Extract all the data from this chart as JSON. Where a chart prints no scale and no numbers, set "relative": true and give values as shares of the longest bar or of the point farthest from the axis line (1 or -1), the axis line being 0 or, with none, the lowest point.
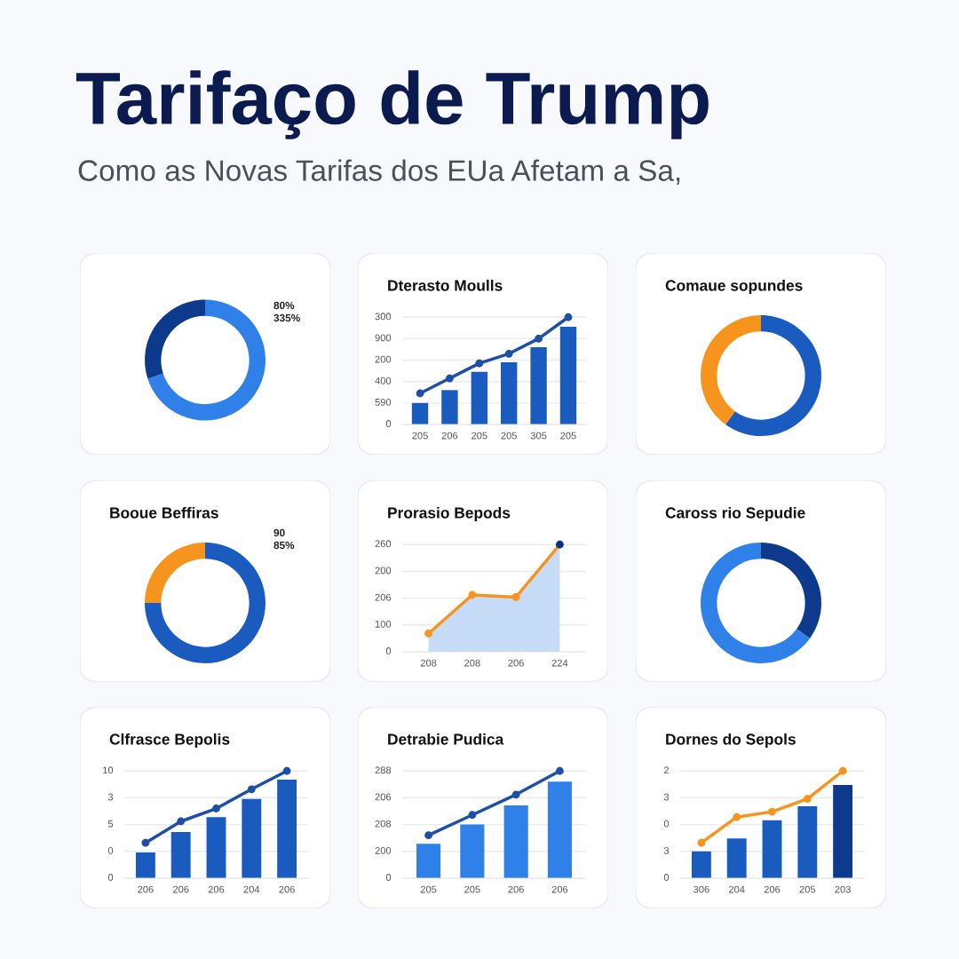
{
  "chart_data": [
    {
      "type": "other",
      "title": "Tarifaço de Trump",
      "subtitle": "Como as Novas Tarifas dos EUa Afetam a Sa,"
    },
    {
      "type": "donut",
      "categories": [
        null,
        null
      ],
      "values": [
        70,
        30
      ],
      "colors": [
        "#2f80e8",
        "#0d3a8c"
      ],
      "annotations": [
        "80%",
        "335%"
      ]
    },
    {
      "type": "bar",
      "title": "Dterasto Moulls",
      "categories": [
        "205",
        "206",
        "205",
        "205",
        "305",
        "205"
      ],
      "relative": true,
      "series": [
        {
          "type": "bar",
          "color": "#1a5bbf",
          "values": [
            0.2,
            0.32,
            0.49,
            0.58,
            0.72,
            0.91
          ]
        },
        {
          "type": "line",
          "color": "#1d4fa8",
          "values": [
            0.29,
            0.43,
            0.57,
            0.66,
            0.8,
            1.0
          ]
        }
      ],
      "annotations": [
        "0",
        "590",
        "400",
        "200",
        "900",
        "300"
      ],
      "grid": "y",
      "marker": "circle"
    },
    {
      "type": "donut",
      "title": "Comaue sopundes",
      "categories": [
        null,
        null
      ],
      "values": [
        60,
        40
      ],
      "colors": [
        "#1a5bbf",
        "#f7941d"
      ]
    },
    {
      "type": "donut",
      "title": "Booue Beffiras",
      "categories": [
        null,
        null
      ],
      "values": [
        75,
        25
      ],
      "colors": [
        "#1a5bbf",
        "#f7941d"
      ],
      "annotations": [
        "90",
        "85%"
      ]
    },
    {
      "type": "area",
      "title": "Prorasio Bepods",
      "categories": [
        "208",
        "208",
        "206",
        "224"
      ],
      "relative": true,
      "series": [
        {
          "type": "area",
          "color": "#c6dcf6",
          "marker": "none",
          "values": [
            0.17,
            0.53,
            0.51,
            1.0
          ]
        },
        {
          "type": "line",
          "color": "#f7941d",
          "colors": [
            "#f7941d",
            "#f7941d",
            "#f7941d",
            "#0d2f80"
          ],
          "values": [
            0.17,
            0.53,
            0.51,
            1.0
          ]
        }
      ],
      "annotations": [
        "0",
        "100",
        "206",
        "200",
        "260"
      ],
      "grid": "y",
      "marker": "circle"
    },
    {
      "type": "donut",
      "title": "Caross rio Sepudie",
      "categories": [
        null,
        null
      ],
      "values": [
        35,
        65
      ],
      "colors": [
        "#0d3a8c",
        "#2f80e8"
      ]
    },
    {
      "type": "bar",
      "title": "Clfrasce Bepolis",
      "categories": [
        "206",
        "206",
        "206",
        "204",
        "206"
      ],
      "relative": true,
      "series": [
        {
          "type": "bar",
          "color": "#1a5bbf",
          "values": [
            0.24,
            0.43,
            0.57,
            0.74,
            0.92
          ]
        },
        {
          "type": "line",
          "color": "#1d4fa8",
          "values": [
            0.33,
            0.53,
            0.65,
            0.83,
            1.0
          ]
        }
      ],
      "annotations": [
        "0",
        "0",
        "5",
        "3",
        "10"
      ],
      "grid": "y",
      "marker": "circle"
    },
    {
      "type": "bar",
      "title": "Detrabie Pudica",
      "categories": [
        "205",
        "205",
        "206",
        "206"
      ],
      "relative": true,
      "series": [
        {
          "type": "bar",
          "color": "#2f80e8",
          "values": [
            0.32,
            0.5,
            0.68,
            0.9
          ]
        },
        {
          "type": "line",
          "color": "#1d4fa8",
          "values": [
            0.4,
            0.59,
            0.78,
            1.0
          ]
        }
      ],
      "annotations": [
        "0",
        "200",
        "208",
        "206",
        "288"
      ],
      "grid": "y",
      "marker": "circle"
    },
    {
      "type": "bar",
      "title": "Dornes do Sepols",
      "categories": [
        "306",
        "204",
        "206",
        "205",
        "203"
      ],
      "relative": true,
      "series": [
        {
          "type": "bar",
          "colors": [
            "#1a5bbf",
            "#1a5bbf",
            "#1a5bbf",
            "#1a5bbf",
            "#0d3a8c"
          ],
          "values": [
            0.25,
            0.37,
            0.54,
            0.67,
            0.87
          ]
        },
        {
          "type": "line",
          "color": "#f7941d",
          "values": [
            0.33,
            0.57,
            0.62,
            0.74,
            1.0
          ]
        }
      ],
      "annotations": [
        "0",
        "3",
        "0",
        "3",
        "2"
      ],
      "grid": "y",
      "marker": "circle"
    }
  ]
}
